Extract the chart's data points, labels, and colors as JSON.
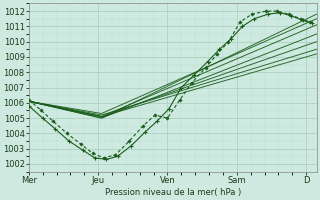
{
  "bg_color": "#ceeae0",
  "grid_major_color": "#a8ccbe",
  "grid_minor_color": "#bcddd2",
  "line_color": "#1a5c1a",
  "xlabel": "Pression niveau de la mer( hPa )",
  "ylim": [
    1001.5,
    1012.5
  ],
  "yticks": [
    1002,
    1003,
    1004,
    1005,
    1006,
    1007,
    1008,
    1009,
    1010,
    1011,
    1012
  ],
  "xtick_labels": [
    "Mer",
    "Jeu",
    "Ven",
    "Sam",
    "D"
  ],
  "xtick_positions": [
    0.0,
    1.0,
    2.0,
    3.0,
    4.0
  ],
  "xlim": [
    0.0,
    4.15
  ],
  "ensemble_lines": [
    {
      "x": [
        0.0,
        1.05,
        4.15
      ],
      "y": [
        1006.1,
        1005.1,
        1011.1
      ]
    },
    {
      "x": [
        0.0,
        1.05,
        4.15
      ],
      "y": [
        1006.1,
        1005.0,
        1010.5
      ]
    },
    {
      "x": [
        0.0,
        1.05,
        4.15
      ],
      "y": [
        1006.1,
        1005.1,
        1010.0
      ]
    },
    {
      "x": [
        0.0,
        1.05,
        4.15
      ],
      "y": [
        1006.1,
        1005.2,
        1009.5
      ]
    },
    {
      "x": [
        0.0,
        1.05,
        4.15
      ],
      "y": [
        1006.1,
        1005.3,
        1011.5
      ]
    },
    {
      "x": [
        0.0,
        1.05,
        4.15
      ],
      "y": [
        1006.1,
        1005.0,
        1011.8
      ]
    },
    {
      "x": [
        0.0,
        1.05,
        4.15
      ],
      "y": [
        1006.1,
        1005.1,
        1009.2
      ]
    }
  ],
  "dashed_x": [
    0.0,
    0.18,
    0.35,
    0.55,
    0.75,
    0.92,
    1.08,
    1.25,
    1.45,
    1.65,
    1.82,
    2.0,
    2.18,
    2.35,
    2.55,
    2.72,
    2.88,
    3.05,
    3.22,
    3.42,
    3.58,
    3.75,
    3.92,
    4.05
  ],
  "dashed_y": [
    1006.2,
    1005.5,
    1004.8,
    1004.0,
    1003.3,
    1002.7,
    1002.4,
    1002.6,
    1003.5,
    1004.5,
    1005.2,
    1005.0,
    1006.2,
    1007.3,
    1008.3,
    1009.2,
    1010.0,
    1011.3,
    1011.8,
    1012.0,
    1012.0,
    1011.8,
    1011.5,
    1011.3
  ],
  "marker_x": [
    0.0,
    0.2,
    0.38,
    0.58,
    0.78,
    0.95,
    1.12,
    1.28,
    1.48,
    1.68,
    1.85,
    2.02,
    2.2,
    2.38,
    2.58,
    2.75,
    2.92,
    3.08,
    3.25,
    3.45,
    3.62,
    3.78,
    3.95,
    4.08
  ],
  "marker_y": [
    1005.8,
    1005.0,
    1004.3,
    1003.5,
    1002.9,
    1002.4,
    1002.3,
    1002.5,
    1003.2,
    1004.1,
    1004.8,
    1005.6,
    1007.0,
    1007.8,
    1008.7,
    1009.5,
    1010.2,
    1011.0,
    1011.5,
    1011.8,
    1011.9,
    1011.7,
    1011.4,
    1011.2
  ]
}
